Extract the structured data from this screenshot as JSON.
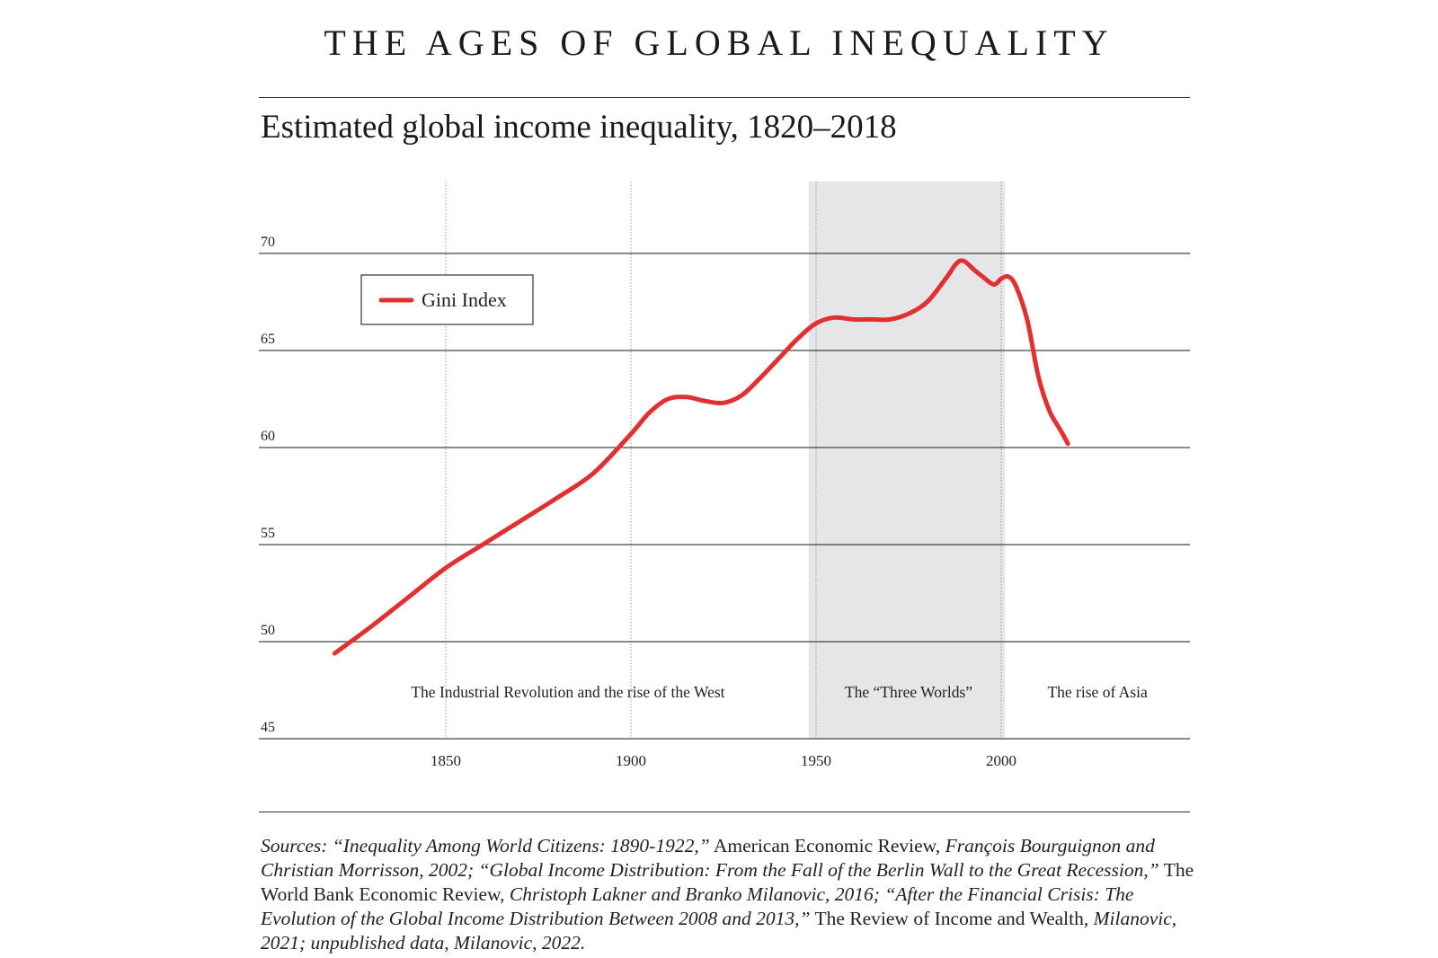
{
  "header": {
    "title": "THE AGES OF GLOBAL INEQUALITY"
  },
  "chart_data": {
    "type": "line",
    "title": "Estimated global income inequality, 1820–2018",
    "xlabel": "",
    "ylabel": "",
    "xlim": [
      1820,
      2050
    ],
    "ylim": [
      45,
      73
    ],
    "x_ticks": [
      1850,
      1900,
      1950,
      2000
    ],
    "y_ticks": [
      45,
      50,
      55,
      60,
      65,
      70
    ],
    "grid": "horizontal at y ticks; dotted vertical at x ticks",
    "legend": {
      "placement": "top-left"
    },
    "series": [
      {
        "name": "Gini Index",
        "color": "#e03030",
        "x": [
          1820,
          1830,
          1840,
          1850,
          1860,
          1870,
          1880,
          1890,
          1900,
          1905,
          1910,
          1915,
          1920,
          1925,
          1930,
          1935,
          1940,
          1945,
          1950,
          1955,
          1960,
          1965,
          1970,
          1975,
          1980,
          1985,
          1988,
          1990,
          1993,
          1995,
          1998,
          2000,
          2002,
          2004,
          2007,
          2010,
          2013,
          2016,
          2018
        ],
        "y": [
          49.4,
          50.8,
          52.3,
          53.8,
          55.0,
          56.2,
          57.4,
          58.7,
          60.7,
          61.8,
          62.5,
          62.6,
          62.4,
          62.3,
          62.7,
          63.6,
          64.6,
          65.6,
          66.4,
          66.7,
          66.6,
          66.6,
          66.6,
          66.9,
          67.5,
          68.7,
          69.5,
          69.6,
          69.1,
          68.8,
          68.4,
          68.7,
          68.8,
          68.3,
          66.6,
          63.7,
          61.9,
          60.9,
          60.2
        ]
      }
    ],
    "shaded_regions": [
      {
        "x_start": 1948,
        "x_end": 2001,
        "color": "#e6e6e8"
      }
    ],
    "annotations": [
      {
        "text": "The Industrial Revolution and the rise of the West",
        "x": 1883,
        "y": 47.4
      },
      {
        "text": "The “Three Worlds”",
        "x": 1975,
        "y": 47.4
      },
      {
        "text": "The rise of Asia",
        "x": 2026,
        "y": 47.4
      }
    ]
  },
  "footer": {
    "sources": [
      {
        "italic": true,
        "text": "Sources: “Inequality Among World Citizens: 1890-1922,”"
      },
      {
        "italic": false,
        "text": " American Economic Review, "
      },
      {
        "italic": true,
        "text": "François Bourguignon and Christian Morrisson, 2002; “Global Income Distribution: From the Fall of the Berlin Wall to the Great Recession,”"
      },
      {
        "italic": false,
        "text": " The World Bank Economic Review, "
      },
      {
        "italic": true,
        "text": "Christoph Lakner and Branko Milanovic, 2016; “After the Financial Crisis: The Evolution of the Global Income Distribution Between 2008 and 2013,”"
      },
      {
        "italic": false,
        "text": " The Review of Income and Wealth, "
      },
      {
        "italic": true,
        "text": "Milanovic, 2021; unpublished data, Milanovic, 2022."
      }
    ]
  }
}
